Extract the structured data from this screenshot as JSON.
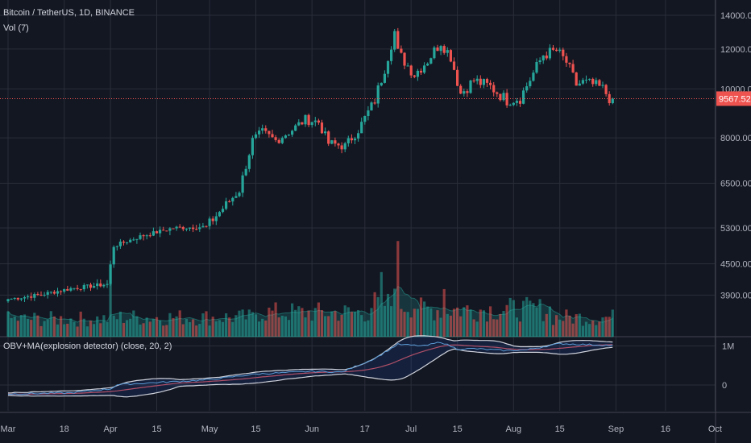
{
  "header": {
    "symbol_line": "Bitcoin / TetherUS, 1D, BINANCE",
    "volume_label": "Vol (7)"
  },
  "indicator": {
    "label": "OBV+MA(explosion detector) (close, 20, 2)",
    "axis_ticks": [
      {
        "label": "1M",
        "value": 1000000
      },
      {
        "label": "0",
        "value": 0
      }
    ]
  },
  "colors": {
    "background": "#131722",
    "grid": "#2a2e39",
    "up": "#26a69a",
    "down": "#ef5350",
    "price_line": "#ef5350",
    "obv_line": "#5b9bd5",
    "ma_line": "#b05068",
    "band_line": "#d1d4dc",
    "volume_ma": "#26a69a"
  },
  "chart_data": [
    {
      "type": "candlestick",
      "title": "Bitcoin / TetherUS, 1D, BINANCE",
      "y_scale": "log",
      "ylim": [
        3550,
        14900
      ],
      "y_ticks": [
        14000,
        12000,
        10000,
        8000,
        6500,
        5300,
        4500,
        3900
      ],
      "y_tick_labels": [
        "14000.00",
        "12000.00",
        "10000.00",
        "8000.00",
        "6500.00",
        "5300.00",
        "4500.00",
        "3900.00"
      ],
      "x_ticks": [
        "Mar",
        "18",
        "Apr",
        "15",
        "May",
        "15",
        "Jun",
        "17",
        "Jul",
        "15",
        "Aug",
        "15",
        "Sep",
        "16",
        "Oct"
      ],
      "last_price": 9567.52,
      "last_price_label": "9567.52",
      "price_anchors": [
        [
          "2019-03-01",
          3830
        ],
        [
          "2019-03-10",
          3900
        ],
        [
          "2019-03-20",
          4020
        ],
        [
          "2019-03-31",
          4100
        ],
        [
          "2019-04-02",
          4880
        ],
        [
          "2019-04-10",
          5100
        ],
        [
          "2019-04-20",
          5300
        ],
        [
          "2019-04-30",
          5330
        ],
        [
          "2019-05-05",
          5800
        ],
        [
          "2019-05-10",
          6300
        ],
        [
          "2019-05-14",
          7900
        ],
        [
          "2019-05-17",
          8200
        ],
        [
          "2019-05-21",
          7900
        ],
        [
          "2019-05-26",
          8300
        ],
        [
          "2019-05-30",
          8700
        ],
        [
          "2019-06-03",
          8600
        ],
        [
          "2019-06-06",
          7800
        ],
        [
          "2019-06-11",
          7700
        ],
        [
          "2019-06-15",
          8300
        ],
        [
          "2019-06-20",
          9500
        ],
        [
          "2019-06-23",
          11000
        ],
        [
          "2019-06-26",
          13000
        ],
        [
          "2019-06-27",
          11800
        ],
        [
          "2019-07-02",
          10700
        ],
        [
          "2019-07-06",
          11400
        ],
        [
          "2019-07-10",
          12400
        ],
        [
          "2019-07-13",
          11600
        ],
        [
          "2019-07-16",
          9800
        ],
        [
          "2019-07-20",
          10400
        ],
        [
          "2019-07-25",
          10100
        ],
        [
          "2019-07-30",
          9500
        ],
        [
          "2019-08-03",
          9600
        ],
        [
          "2019-08-10",
          11700
        ],
        [
          "2019-08-14",
          11900
        ],
        [
          "2019-08-17",
          11300
        ],
        [
          "2019-08-20",
          10200
        ],
        [
          "2019-08-22",
          10300
        ],
        [
          "2019-08-25",
          10200
        ],
        [
          "2019-08-28",
          10000
        ],
        [
          "2019-08-30",
          9600
        ],
        [
          "2019-08-31",
          9567.52
        ]
      ]
    },
    {
      "type": "bar",
      "name": "Vol (7)",
      "series": "daily volume with moving average area"
    },
    {
      "type": "line",
      "title": "OBV+MA(explosion detector) (close, 20, 2)",
      "series": [
        {
          "name": "OBV"
        },
        {
          "name": "MA"
        },
        {
          "name": "upper band"
        },
        {
          "name": "lower band"
        }
      ],
      "y_ticks": [
        1000000,
        0
      ],
      "obv_anchors": [
        [
          "2019-03-01",
          -230000
        ],
        [
          "2019-03-20",
          -200000
        ],
        [
          "2019-04-01",
          -100000
        ],
        [
          "2019-04-03",
          10000
        ],
        [
          "2019-04-30",
          130000
        ],
        [
          "2019-05-15",
          280000
        ],
        [
          "2019-06-01",
          350000
        ],
        [
          "2019-06-10",
          330000
        ],
        [
          "2019-06-20",
          680000
        ],
        [
          "2019-06-27",
          1040000
        ],
        [
          "2019-07-05",
          1000000
        ],
        [
          "2019-07-10",
          1100000
        ],
        [
          "2019-07-15",
          920000
        ],
        [
          "2019-07-20",
          930000
        ],
        [
          "2019-07-30",
          880000
        ],
        [
          "2019-08-05",
          900000
        ],
        [
          "2019-08-15",
          1060000
        ],
        [
          "2019-08-25",
          1030000
        ],
        [
          "2019-08-31",
          1010000
        ]
      ]
    }
  ]
}
